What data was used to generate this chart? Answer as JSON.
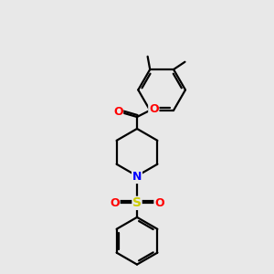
{
  "background_color": "#e8e8e8",
  "line_color": "#000000",
  "line_width": 1.6,
  "atom_colors": {
    "O": "#ff0000",
    "N": "#0000ff",
    "S": "#cccc00",
    "C": "#000000"
  },
  "figsize": [
    3.0,
    3.0
  ],
  "dpi": 100,
  "bg": "#e8e8e8"
}
